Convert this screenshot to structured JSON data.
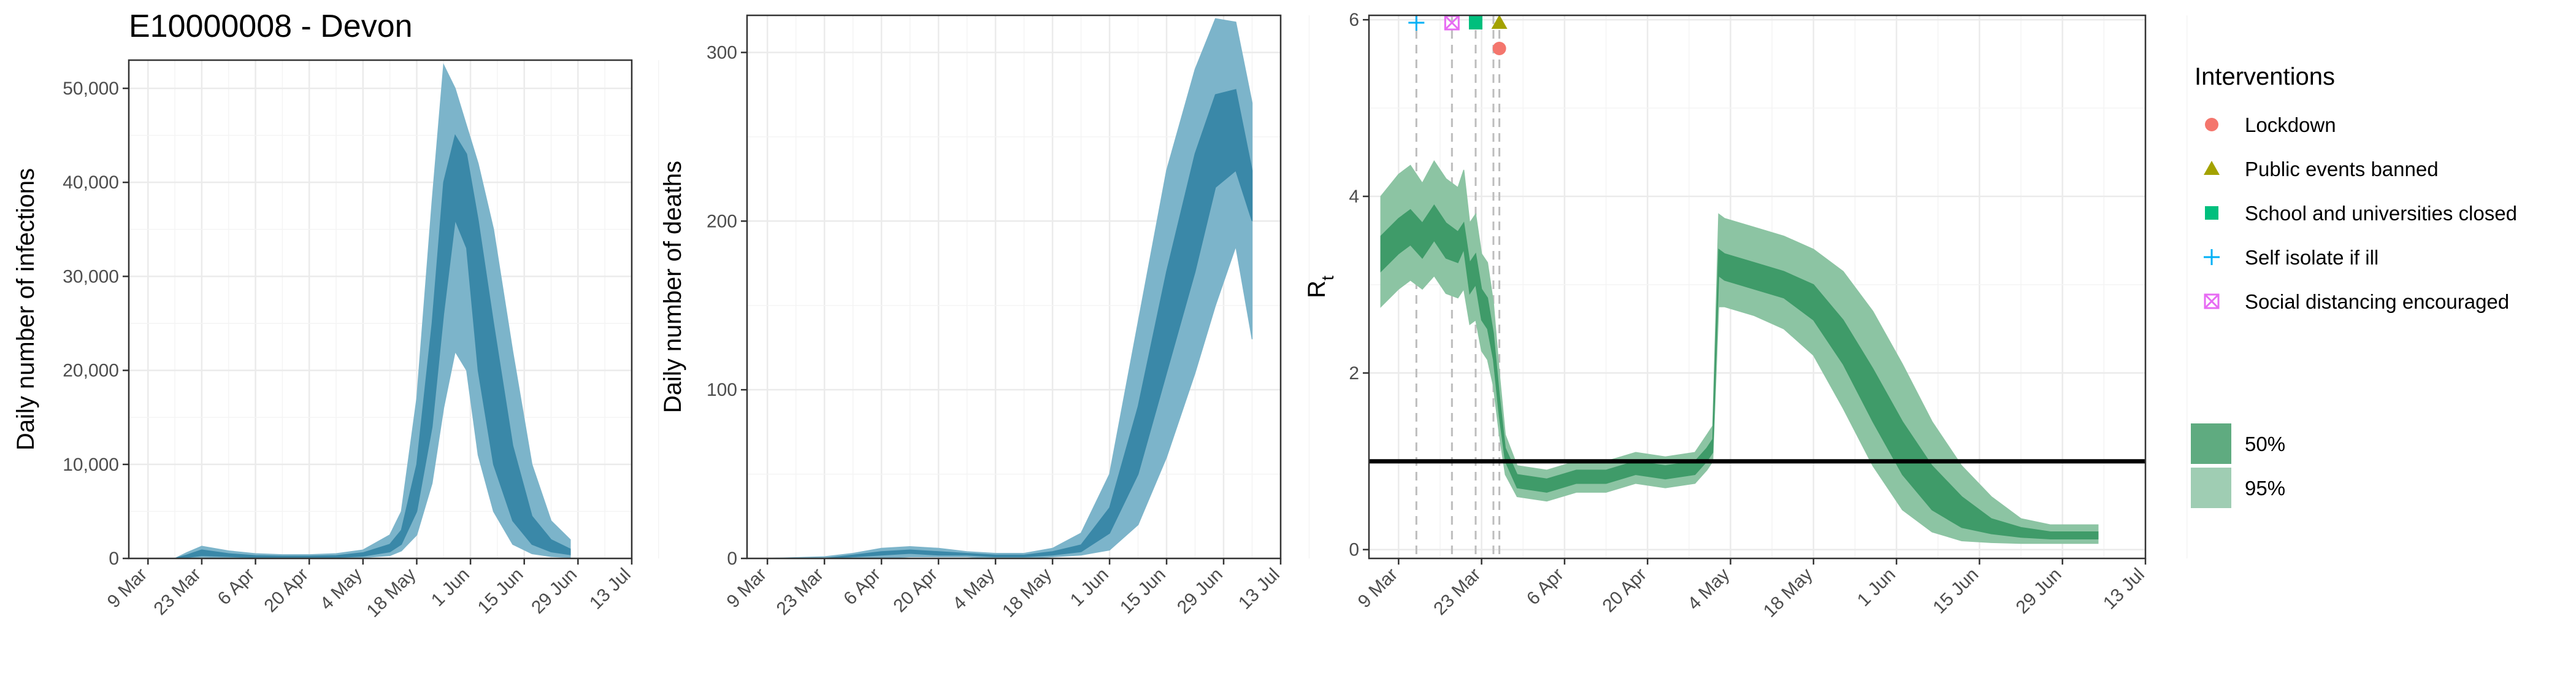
{
  "page_title": "E10000008 - Devon",
  "colors": {
    "infections_dark": "#3a88a8",
    "infections_light": "#7cb4ca",
    "rt_dark": "#3f9b69",
    "rt_light": "#8cc4a3",
    "lockdown": "#f4766d",
    "public_events": "#a3a200",
    "schools": "#00bf7d",
    "self_isolate": "#00b0f6",
    "social_distancing": "#e76bf3"
  },
  "x_tick_labels": [
    "9 Mar",
    "23 Mar",
    "6 Apr",
    "20 Apr",
    "4 May",
    "18 May",
    "1 Jun",
    "15 Jun",
    "29 Jun",
    "13 Jul"
  ],
  "legend": {
    "title": "Interventions",
    "items": [
      {
        "label": "Lockdown",
        "symbol": "circle",
        "color": "#f4766d"
      },
      {
        "label": "Public events banned",
        "symbol": "triangle",
        "color": "#a3a200"
      },
      {
        "label": "School and universities closed",
        "symbol": "square",
        "color": "#00bf7d"
      },
      {
        "label": "Self isolate if ill",
        "symbol": "plus",
        "color": "#00b0f6"
      },
      {
        "label": "Social distancing encouraged",
        "symbol": "boxtimes",
        "color": "#e76bf3"
      }
    ],
    "bands": [
      {
        "label": "50%",
        "color": "#5fab80"
      },
      {
        "label": "95%",
        "color": "#9fcdb3"
      }
    ]
  },
  "chart_data": [
    {
      "type": "area",
      "xlabel": "",
      "ylabel": "Daily number of infections",
      "x_unit": "days since 9 Mar",
      "xlim": [
        -5,
        126
      ],
      "ylim": [
        0,
        53000
      ],
      "yticks": [
        0,
        10000,
        20000,
        30000,
        40000,
        50000
      ],
      "ytick_labels": [
        "0",
        "10,000",
        "20,000",
        "30,000",
        "40,000",
        "50,000"
      ],
      "grid": true,
      "series": [
        {
          "name": "50%",
          "x": [
            0,
            7,
            10,
            14,
            21,
            28,
            35,
            42,
            49,
            56,
            63,
            66,
            70,
            74,
            77,
            80,
            83,
            86,
            90,
            95,
            100,
            105,
            110
          ],
          "lower": [
            0,
            0,
            100,
            300,
            200,
            100,
            50,
            50,
            100,
            250,
            700,
            1500,
            5000,
            14000,
            26000,
            36000,
            33000,
            20000,
            10000,
            4000,
            1500,
            700,
            400
          ],
          "upper": [
            0,
            0,
            350,
            900,
            500,
            300,
            250,
            250,
            300,
            600,
            1500,
            3000,
            10000,
            25000,
            40000,
            45000,
            43000,
            36000,
            25000,
            12000,
            4500,
            2000,
            1000
          ]
        },
        {
          "name": "95%",
          "x": [
            0,
            7,
            10,
            14,
            21,
            28,
            35,
            42,
            49,
            56,
            63,
            66,
            70,
            74,
            77,
            80,
            83,
            86,
            90,
            95,
            100,
            105,
            110
          ],
          "lower": [
            0,
            0,
            0,
            150,
            50,
            0,
            0,
            0,
            0,
            100,
            300,
            800,
            2500,
            8000,
            16000,
            22000,
            20000,
            11000,
            5000,
            1500,
            500,
            200,
            100
          ],
          "upper": [
            0,
            0,
            600,
            1300,
            800,
            500,
            400,
            400,
            500,
            900,
            2500,
            5000,
            17000,
            38000,
            52500,
            50000,
            46000,
            42000,
            35000,
            22000,
            10000,
            4000,
            2000
          ]
        }
      ]
    },
    {
      "type": "area",
      "xlabel": "",
      "ylabel": "Daily number of deaths",
      "x_unit": "days since 9 Mar",
      "xlim": [
        -5,
        126
      ],
      "ylim": [
        0,
        322
      ],
      "yticks": [
        0,
        100,
        200,
        300
      ],
      "ytick_labels": [
        "0",
        "100",
        "200",
        "300"
      ],
      "grid": true,
      "series": [
        {
          "name": "50%",
          "x": [
            0,
            14,
            21,
            28,
            35,
            42,
            49,
            56,
            63,
            70,
            77,
            84,
            91,
            98,
            105,
            110,
            115,
            119
          ],
          "lower": [
            0,
            0,
            1,
            2,
            3,
            2,
            2,
            1,
            1,
            2,
            4,
            15,
            50,
            110,
            170,
            220,
            230,
            200
          ],
          "upper": [
            0,
            0,
            2,
            4,
            5,
            4,
            3,
            2,
            2,
            4,
            8,
            30,
            90,
            170,
            240,
            275,
            278,
            230
          ]
        },
        {
          "name": "95%",
          "x": [
            0,
            14,
            21,
            28,
            35,
            42,
            49,
            56,
            63,
            70,
            77,
            84,
            91,
            98,
            105,
            110,
            115,
            119
          ],
          "lower": [
            0,
            0,
            0,
            0,
            1,
            1,
            1,
            0,
            0,
            1,
            2,
            5,
            20,
            60,
            110,
            150,
            185,
            130
          ],
          "upper": [
            0,
            1,
            3,
            6,
            7,
            6,
            4,
            3,
            3,
            6,
            15,
            50,
            140,
            230,
            290,
            320,
            318,
            270
          ]
        }
      ]
    },
    {
      "type": "area",
      "xlabel": "",
      "ylabel": "Rt",
      "x_unit": "days since 9 Mar",
      "xlim": [
        -5,
        126
      ],
      "ylim": [
        -0.1,
        6.05
      ],
      "yticks": [
        0,
        2,
        4,
        6
      ],
      "ytick_labels": [
        "0",
        "2",
        "4",
        "6"
      ],
      "grid": true,
      "reference_line": 1,
      "intervention_days": [
        3,
        9,
        13,
        16,
        17
      ],
      "series": [
        {
          "name": "50%",
          "x": [
            -3,
            0,
            2,
            4,
            6,
            8,
            10,
            11,
            12,
            13,
            14,
            15,
            16,
            17,
            18,
            20,
            25,
            30,
            35,
            40,
            45,
            50,
            52,
            53,
            54,
            55,
            60,
            65,
            70,
            75,
            80,
            85,
            90,
            95,
            100,
            105,
            110,
            118
          ],
          "lower": [
            3.15,
            3.35,
            3.45,
            3.3,
            3.5,
            3.3,
            3.25,
            3.4,
            2.9,
            3.0,
            2.6,
            2.5,
            2.15,
            1.5,
            1.0,
            0.7,
            0.65,
            0.75,
            0.75,
            0.85,
            0.8,
            0.85,
            1.0,
            1.1,
            3.1,
            3.05,
            2.95,
            2.85,
            2.6,
            2.1,
            1.45,
            0.85,
            0.45,
            0.25,
            0.18,
            0.14,
            0.12,
            0.12
          ],
          "upper": [
            3.55,
            3.75,
            3.85,
            3.7,
            3.9,
            3.7,
            3.6,
            3.7,
            3.25,
            3.35,
            2.95,
            2.85,
            2.45,
            1.75,
            1.15,
            0.85,
            0.8,
            0.9,
            0.9,
            1.0,
            0.95,
            1.0,
            1.15,
            1.25,
            3.4,
            3.35,
            3.25,
            3.15,
            3.0,
            2.6,
            2.05,
            1.45,
            0.95,
            0.6,
            0.35,
            0.25,
            0.2,
            0.2
          ]
        },
        {
          "name": "95%",
          "x": [
            -3,
            0,
            2,
            4,
            6,
            8,
            10,
            11,
            12,
            13,
            14,
            15,
            16,
            17,
            18,
            20,
            25,
            30,
            35,
            40,
            45,
            50,
            52,
            53,
            54,
            55,
            60,
            65,
            70,
            75,
            80,
            85,
            90,
            95,
            100,
            105,
            110,
            118
          ],
          "lower": [
            2.75,
            2.95,
            3.05,
            2.95,
            3.1,
            2.9,
            2.85,
            2.95,
            2.55,
            2.6,
            2.25,
            2.15,
            1.85,
            1.3,
            0.85,
            0.6,
            0.55,
            0.65,
            0.65,
            0.75,
            0.7,
            0.75,
            0.9,
            1.0,
            2.75,
            2.75,
            2.65,
            2.5,
            2.2,
            1.6,
            0.95,
            0.45,
            0.2,
            0.1,
            0.08,
            0.07,
            0.07,
            0.07
          ]
        },
        {
          "name": "95%",
          "x": [
            -3,
            0,
            2,
            4,
            6,
            8,
            10,
            11,
            12,
            13,
            14,
            15,
            16,
            17,
            18,
            20,
            25,
            30,
            35,
            40,
            45,
            50,
            52,
            53,
            54,
            55,
            60,
            65,
            70,
            75,
            80,
            85,
            90,
            95,
            100,
            105,
            110,
            118
          ],
          "upper": [
            4.0,
            4.25,
            4.35,
            4.15,
            4.4,
            4.2,
            4.1,
            4.3,
            3.7,
            3.8,
            3.35,
            3.25,
            2.8,
            2.0,
            1.3,
            0.95,
            0.9,
            1.0,
            1.0,
            1.1,
            1.05,
            1.1,
            1.3,
            1.4,
            3.8,
            3.75,
            3.65,
            3.55,
            3.4,
            3.15,
            2.7,
            2.1,
            1.45,
            0.95,
            0.6,
            0.35,
            0.28,
            0.28
          ]
        }
      ]
    }
  ]
}
